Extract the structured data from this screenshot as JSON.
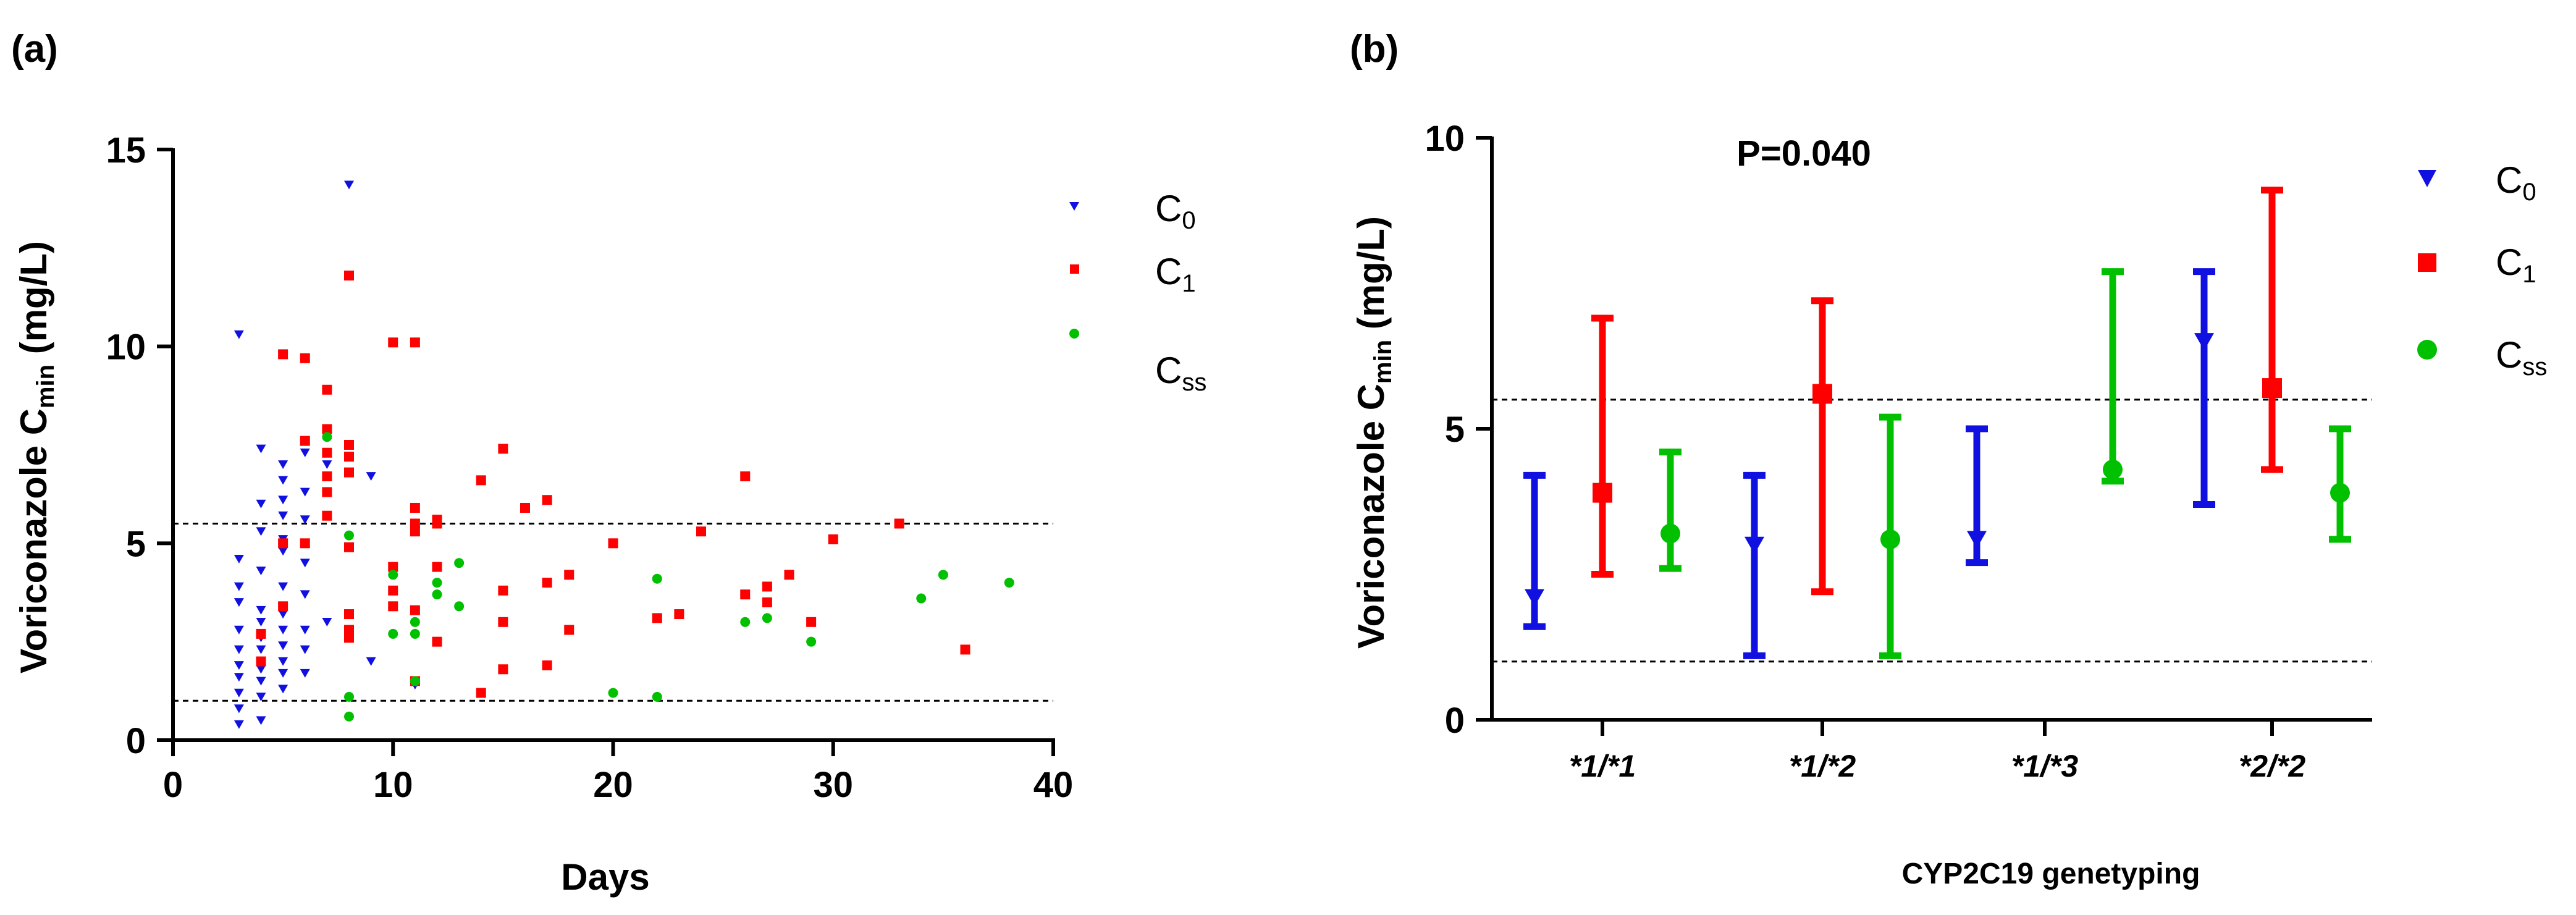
{
  "panels": {
    "a": {
      "label": "(a)"
    },
    "b": {
      "label": "(b)"
    }
  },
  "legend": {
    "c0": {
      "main": "C",
      "sub": "0",
      "color": "#1010e0"
    },
    "c1": {
      "main": "C",
      "sub": "1",
      "color": "#ff0000"
    },
    "css": {
      "main": "C",
      "sub": "ss",
      "color": "#00c000"
    }
  },
  "chart_data": [
    {
      "type": "scatter",
      "title": "",
      "xlabel": "Days",
      "ylabel": {
        "main": "Voriconazole C",
        "sub": "min",
        "unit": " (mg/L)"
      },
      "xlim": [
        0,
        40
      ],
      "ylim": [
        0,
        15
      ],
      "xticks": [
        0,
        10,
        20,
        30,
        40
      ],
      "yticks": [
        0,
        5,
        10,
        15
      ],
      "reference_lines": [
        1,
        5.5
      ],
      "grid": false,
      "legend_position": "top-right",
      "series": [
        {
          "name": "C0",
          "marker": "triangle-down",
          "color": "#1010e0",
          "points": [
            [
              3,
              10.3
            ],
            [
              3,
              4.6
            ],
            [
              3,
              3.9
            ],
            [
              3,
              3.5
            ],
            [
              3,
              2.8
            ],
            [
              3,
              2.3
            ],
            [
              3,
              1.9
            ],
            [
              3,
              1.6
            ],
            [
              3,
              1.2
            ],
            [
              3,
              0.8
            ],
            [
              3,
              0.4
            ],
            [
              4,
              7.4
            ],
            [
              4,
              6.0
            ],
            [
              4,
              5.3
            ],
            [
              4,
              4.3
            ],
            [
              4,
              3.3
            ],
            [
              4,
              3.0
            ],
            [
              4,
              2.6
            ],
            [
              4,
              2.3
            ],
            [
              4,
              1.8
            ],
            [
              4,
              1.5
            ],
            [
              4,
              1.1
            ],
            [
              4,
              0.5
            ],
            [
              5,
              7.0
            ],
            [
              5,
              6.6
            ],
            [
              5,
              6.1
            ],
            [
              5,
              5.7
            ],
            [
              5,
              5.1
            ],
            [
              5,
              4.8
            ],
            [
              5,
              3.9
            ],
            [
              5,
              3.2
            ],
            [
              5,
              2.8
            ],
            [
              5,
              2.4
            ],
            [
              5,
              2.0
            ],
            [
              5,
              1.7
            ],
            [
              5,
              1.3
            ],
            [
              6,
              7.3
            ],
            [
              6,
              6.3
            ],
            [
              6,
              5.6
            ],
            [
              6,
              5.0
            ],
            [
              6,
              4.5
            ],
            [
              6,
              3.7
            ],
            [
              6,
              2.8
            ],
            [
              6,
              2.3
            ],
            [
              6,
              1.7
            ],
            [
              7,
              7.0
            ],
            [
              7,
              3.0
            ],
            [
              8,
              14.1
            ],
            [
              9,
              6.7
            ],
            [
              9,
              2.0
            ],
            [
              11,
              1.4
            ]
          ]
        },
        {
          "name": "C1",
          "marker": "square",
          "color": "#ff0000",
          "points": [
            [
              4,
              2.7
            ],
            [
              4,
              2.0
            ],
            [
              5,
              9.8
            ],
            [
              5,
              5.0
            ],
            [
              5,
              3.4
            ],
            [
              6,
              9.7
            ],
            [
              6,
              7.6
            ],
            [
              6,
              5.0
            ],
            [
              7,
              8.9
            ],
            [
              7,
              7.9
            ],
            [
              7,
              7.3
            ],
            [
              7,
              6.7
            ],
            [
              7,
              6.3
            ],
            [
              7,
              5.7
            ],
            [
              8,
              11.8
            ],
            [
              8,
              7.5
            ],
            [
              8,
              7.2
            ],
            [
              8,
              6.8
            ],
            [
              8,
              4.9
            ],
            [
              8,
              3.2
            ],
            [
              8,
              2.8
            ],
            [
              8,
              2.6
            ],
            [
              10,
              10.1
            ],
            [
              10,
              4.4
            ],
            [
              10,
              3.8
            ],
            [
              10,
              3.4
            ],
            [
              11,
              10.1
            ],
            [
              11,
              5.9
            ],
            [
              11,
              5.5
            ],
            [
              11,
              5.3
            ],
            [
              11,
              3.3
            ],
            [
              11,
              1.5
            ],
            [
              12,
              5.6
            ],
            [
              12,
              5.5
            ],
            [
              12,
              4.4
            ],
            [
              12,
              2.5
            ],
            [
              14,
              6.6
            ],
            [
              14,
              1.2
            ],
            [
              15,
              7.4
            ],
            [
              15,
              3.8
            ],
            [
              15,
              3.0
            ],
            [
              15,
              1.8
            ],
            [
              16,
              5.9
            ],
            [
              17,
              6.1
            ],
            [
              17,
              4.0
            ],
            [
              17,
              1.9
            ],
            [
              18,
              4.2
            ],
            [
              18,
              2.8
            ],
            [
              20,
              5.0
            ],
            [
              22,
              3.1
            ],
            [
              23,
              3.2
            ],
            [
              24,
              5.3
            ],
            [
              26,
              6.7
            ],
            [
              26,
              3.7
            ],
            [
              27,
              3.9
            ],
            [
              27,
              3.5
            ],
            [
              28,
              4.2
            ],
            [
              29,
              3.0
            ],
            [
              30,
              5.1
            ],
            [
              33,
              5.5
            ],
            [
              36,
              2.3
            ]
          ]
        },
        {
          "name": "Css",
          "marker": "circle",
          "color": "#00c000",
          "points": [
            [
              7,
              7.7
            ],
            [
              8,
              5.2
            ],
            [
              8,
              1.1
            ],
            [
              8,
              0.6
            ],
            [
              10,
              4.2
            ],
            [
              10,
              2.7
            ],
            [
              11,
              3.0
            ],
            [
              11,
              2.7
            ],
            [
              11,
              1.5
            ],
            [
              12,
              4.0
            ],
            [
              12,
              3.7
            ],
            [
              13,
              4.5
            ],
            [
              13,
              3.4
            ],
            [
              20,
              1.2
            ],
            [
              22,
              4.1
            ],
            [
              22,
              1.1
            ],
            [
              26,
              3.0
            ],
            [
              27,
              3.1
            ],
            [
              29,
              2.5
            ],
            [
              34,
              3.6
            ],
            [
              35,
              4.2
            ],
            [
              38,
              4.0
            ]
          ]
        }
      ]
    },
    {
      "type": "scatter",
      "title": "",
      "xlabel": "CYP2C19 genetyping",
      "ylabel": {
        "main": "Voriconazole C",
        "sub": "min",
        "unit": " (mg/L)"
      },
      "ylim": [
        0,
        10
      ],
      "yticks": [
        0,
        5,
        10
      ],
      "categories": [
        "*1/*1",
        "*1/*2",
        "*1/*3",
        "*2/*2"
      ],
      "reference_lines": [
        1,
        5.5
      ],
      "annotation": "P=0.040",
      "grid": false,
      "legend_position": "top-right",
      "series": [
        {
          "name": "C0",
          "marker": "triangle-down",
          "color": "#1010e0",
          "values": [
            2.1,
            3.0,
            3.1,
            6.5
          ],
          "lower": [
            1.6,
            1.1,
            2.7,
            3.7
          ],
          "upper": [
            4.2,
            4.2,
            5.0,
            7.7
          ]
        },
        {
          "name": "C1",
          "marker": "square",
          "color": "#ff0000",
          "values": [
            3.9,
            5.6,
            null,
            5.7
          ],
          "lower": [
            2.5,
            2.2,
            null,
            4.3
          ],
          "upper": [
            6.9,
            7.2,
            null,
            9.1
          ]
        },
        {
          "name": "Css",
          "marker": "circle",
          "color": "#00c000",
          "values": [
            3.2,
            3.1,
            4.3,
            3.9
          ],
          "lower": [
            2.6,
            1.1,
            4.1,
            3.1
          ],
          "upper": [
            4.6,
            5.2,
            7.7,
            5.0
          ]
        }
      ]
    }
  ]
}
